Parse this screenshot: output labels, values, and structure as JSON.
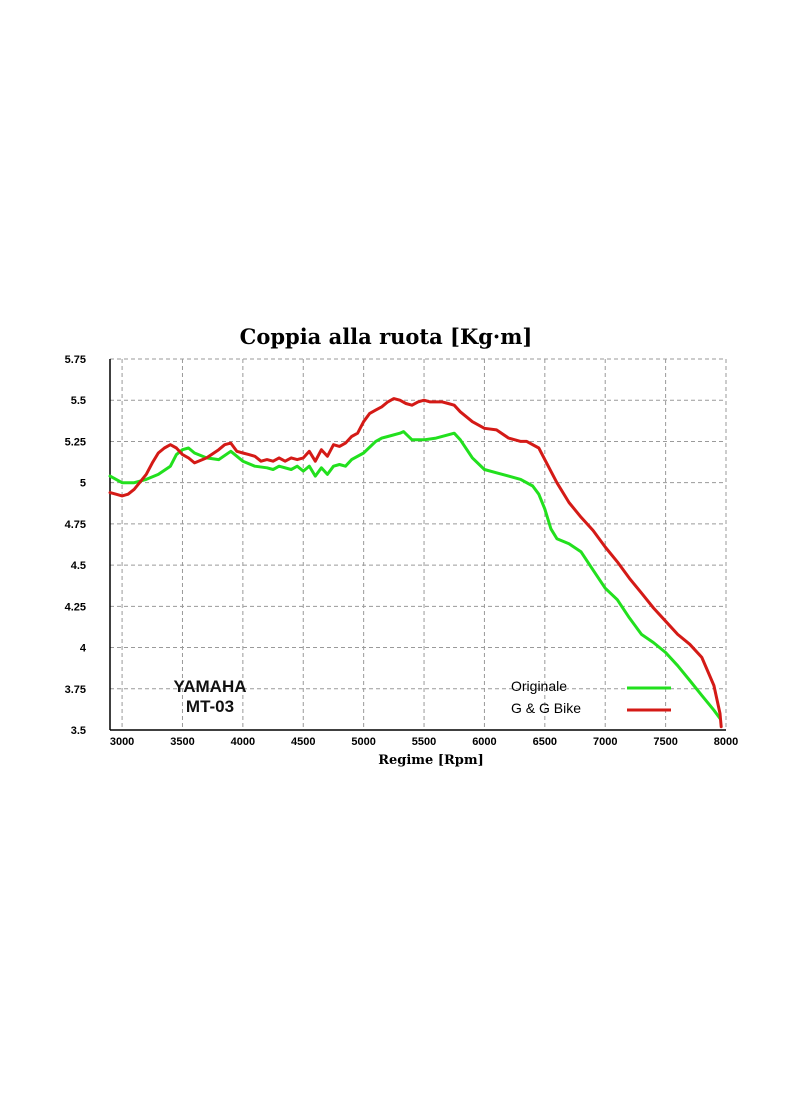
{
  "chart_data": {
    "type": "line",
    "title": "Coppia alla ruota [Kg·m]",
    "xlabel": "Regime [Rpm]",
    "ylabel": "",
    "xlim": [
      2900,
      8000
    ],
    "ylim": [
      3.5,
      5.75
    ],
    "x_ticks": [
      3000,
      3500,
      4000,
      4500,
      5000,
      5500,
      6000,
      6500,
      7000,
      7500,
      8000
    ],
    "y_ticks": [
      3.5,
      3.75,
      4,
      4.25,
      4.5,
      4.75,
      5,
      5.25,
      5.5,
      5.75
    ],
    "x_tick_labels": [
      "3000",
      "3500",
      "4000",
      "4500",
      "5000",
      "5500",
      "6000",
      "6500",
      "7000",
      "7500",
      "8000"
    ],
    "y_tick_labels": [
      "3.5",
      "3.75",
      "4",
      "4.25",
      "4.5",
      "4.75",
      "5",
      "5.25",
      "5.5",
      "5.75"
    ],
    "grid": true,
    "legend_position": "bottom-right",
    "annotation": [
      "YAMAHA",
      "MT-03"
    ],
    "series": [
      {
        "name": "Originale",
        "color": "#22e01e",
        "points": [
          [
            2900,
            5.04
          ],
          [
            3000,
            5.0
          ],
          [
            3100,
            5.0
          ],
          [
            3200,
            5.02
          ],
          [
            3300,
            5.05
          ],
          [
            3400,
            5.1
          ],
          [
            3450,
            5.17
          ],
          [
            3500,
            5.2
          ],
          [
            3550,
            5.21
          ],
          [
            3600,
            5.18
          ],
          [
            3700,
            5.15
          ],
          [
            3800,
            5.14
          ],
          [
            3900,
            5.19
          ],
          [
            4000,
            5.13
          ],
          [
            4100,
            5.1
          ],
          [
            4200,
            5.09
          ],
          [
            4250,
            5.08
          ],
          [
            4300,
            5.1
          ],
          [
            4400,
            5.08
          ],
          [
            4450,
            5.1
          ],
          [
            4500,
            5.07
          ],
          [
            4550,
            5.1
          ],
          [
            4600,
            5.04
          ],
          [
            4650,
            5.09
          ],
          [
            4700,
            5.05
          ],
          [
            4750,
            5.1
          ],
          [
            4800,
            5.11
          ],
          [
            4850,
            5.1
          ],
          [
            4900,
            5.14
          ],
          [
            5000,
            5.18
          ],
          [
            5100,
            5.25
          ],
          [
            5150,
            5.27
          ],
          [
            5200,
            5.28
          ],
          [
            5300,
            5.3
          ],
          [
            5330,
            5.31
          ],
          [
            5400,
            5.26
          ],
          [
            5500,
            5.26
          ],
          [
            5600,
            5.27
          ],
          [
            5700,
            5.29
          ],
          [
            5750,
            5.3
          ],
          [
            5800,
            5.26
          ],
          [
            5900,
            5.15
          ],
          [
            6000,
            5.08
          ],
          [
            6100,
            5.06
          ],
          [
            6200,
            5.04
          ],
          [
            6300,
            5.02
          ],
          [
            6400,
            4.98
          ],
          [
            6450,
            4.93
          ],
          [
            6500,
            4.84
          ],
          [
            6550,
            4.72
          ],
          [
            6600,
            4.66
          ],
          [
            6700,
            4.63
          ],
          [
            6800,
            4.58
          ],
          [
            6900,
            4.47
          ],
          [
            7000,
            4.36
          ],
          [
            7100,
            4.29
          ],
          [
            7200,
            4.18
          ],
          [
            7300,
            4.08
          ],
          [
            7400,
            4.03
          ],
          [
            7500,
            3.97
          ],
          [
            7600,
            3.89
          ],
          [
            7700,
            3.8
          ],
          [
            7800,
            3.71
          ],
          [
            7900,
            3.62
          ],
          [
            7950,
            3.57
          ]
        ]
      },
      {
        "name": "G & G Bike",
        "color": "#d41a16",
        "points": [
          [
            2900,
            4.94
          ],
          [
            2950,
            4.93
          ],
          [
            3000,
            4.92
          ],
          [
            3050,
            4.93
          ],
          [
            3100,
            4.96
          ],
          [
            3200,
            5.05
          ],
          [
            3250,
            5.12
          ],
          [
            3300,
            5.18
          ],
          [
            3350,
            5.21
          ],
          [
            3400,
            5.23
          ],
          [
            3450,
            5.21
          ],
          [
            3500,
            5.17
          ],
          [
            3550,
            5.15
          ],
          [
            3600,
            5.12
          ],
          [
            3700,
            5.15
          ],
          [
            3800,
            5.2
          ],
          [
            3850,
            5.23
          ],
          [
            3900,
            5.24
          ],
          [
            3950,
            5.19
          ],
          [
            4000,
            5.18
          ],
          [
            4050,
            5.17
          ],
          [
            4100,
            5.16
          ],
          [
            4150,
            5.13
          ],
          [
            4200,
            5.14
          ],
          [
            4250,
            5.13
          ],
          [
            4300,
            5.15
          ],
          [
            4350,
            5.13
          ],
          [
            4400,
            5.15
          ],
          [
            4450,
            5.14
          ],
          [
            4500,
            5.15
          ],
          [
            4550,
            5.19
          ],
          [
            4600,
            5.13
          ],
          [
            4650,
            5.2
          ],
          [
            4700,
            5.16
          ],
          [
            4750,
            5.23
          ],
          [
            4800,
            5.22
          ],
          [
            4850,
            5.24
          ],
          [
            4900,
            5.28
          ],
          [
            4950,
            5.3
          ],
          [
            5000,
            5.37
          ],
          [
            5050,
            5.42
          ],
          [
            5100,
            5.44
          ],
          [
            5150,
            5.46
          ],
          [
            5200,
            5.49
          ],
          [
            5250,
            5.51
          ],
          [
            5300,
            5.5
          ],
          [
            5350,
            5.48
          ],
          [
            5400,
            5.47
          ],
          [
            5450,
            5.49
          ],
          [
            5500,
            5.5
          ],
          [
            5550,
            5.49
          ],
          [
            5600,
            5.49
          ],
          [
            5650,
            5.49
          ],
          [
            5700,
            5.48
          ],
          [
            5750,
            5.47
          ],
          [
            5800,
            5.43
          ],
          [
            5900,
            5.37
          ],
          [
            6000,
            5.33
          ],
          [
            6100,
            5.32
          ],
          [
            6200,
            5.27
          ],
          [
            6300,
            5.25
          ],
          [
            6350,
            5.25
          ],
          [
            6450,
            5.21
          ],
          [
            6500,
            5.14
          ],
          [
            6600,
            5.0
          ],
          [
            6700,
            4.88
          ],
          [
            6800,
            4.79
          ],
          [
            6900,
            4.71
          ],
          [
            7000,
            4.61
          ],
          [
            7100,
            4.52
          ],
          [
            7200,
            4.42
          ],
          [
            7300,
            4.33
          ],
          [
            7400,
            4.24
          ],
          [
            7500,
            4.16
          ],
          [
            7600,
            4.08
          ],
          [
            7700,
            4.02
          ],
          [
            7800,
            3.94
          ],
          [
            7900,
            3.77
          ],
          [
            7950,
            3.6
          ],
          [
            7960,
            3.52
          ]
        ]
      }
    ]
  }
}
